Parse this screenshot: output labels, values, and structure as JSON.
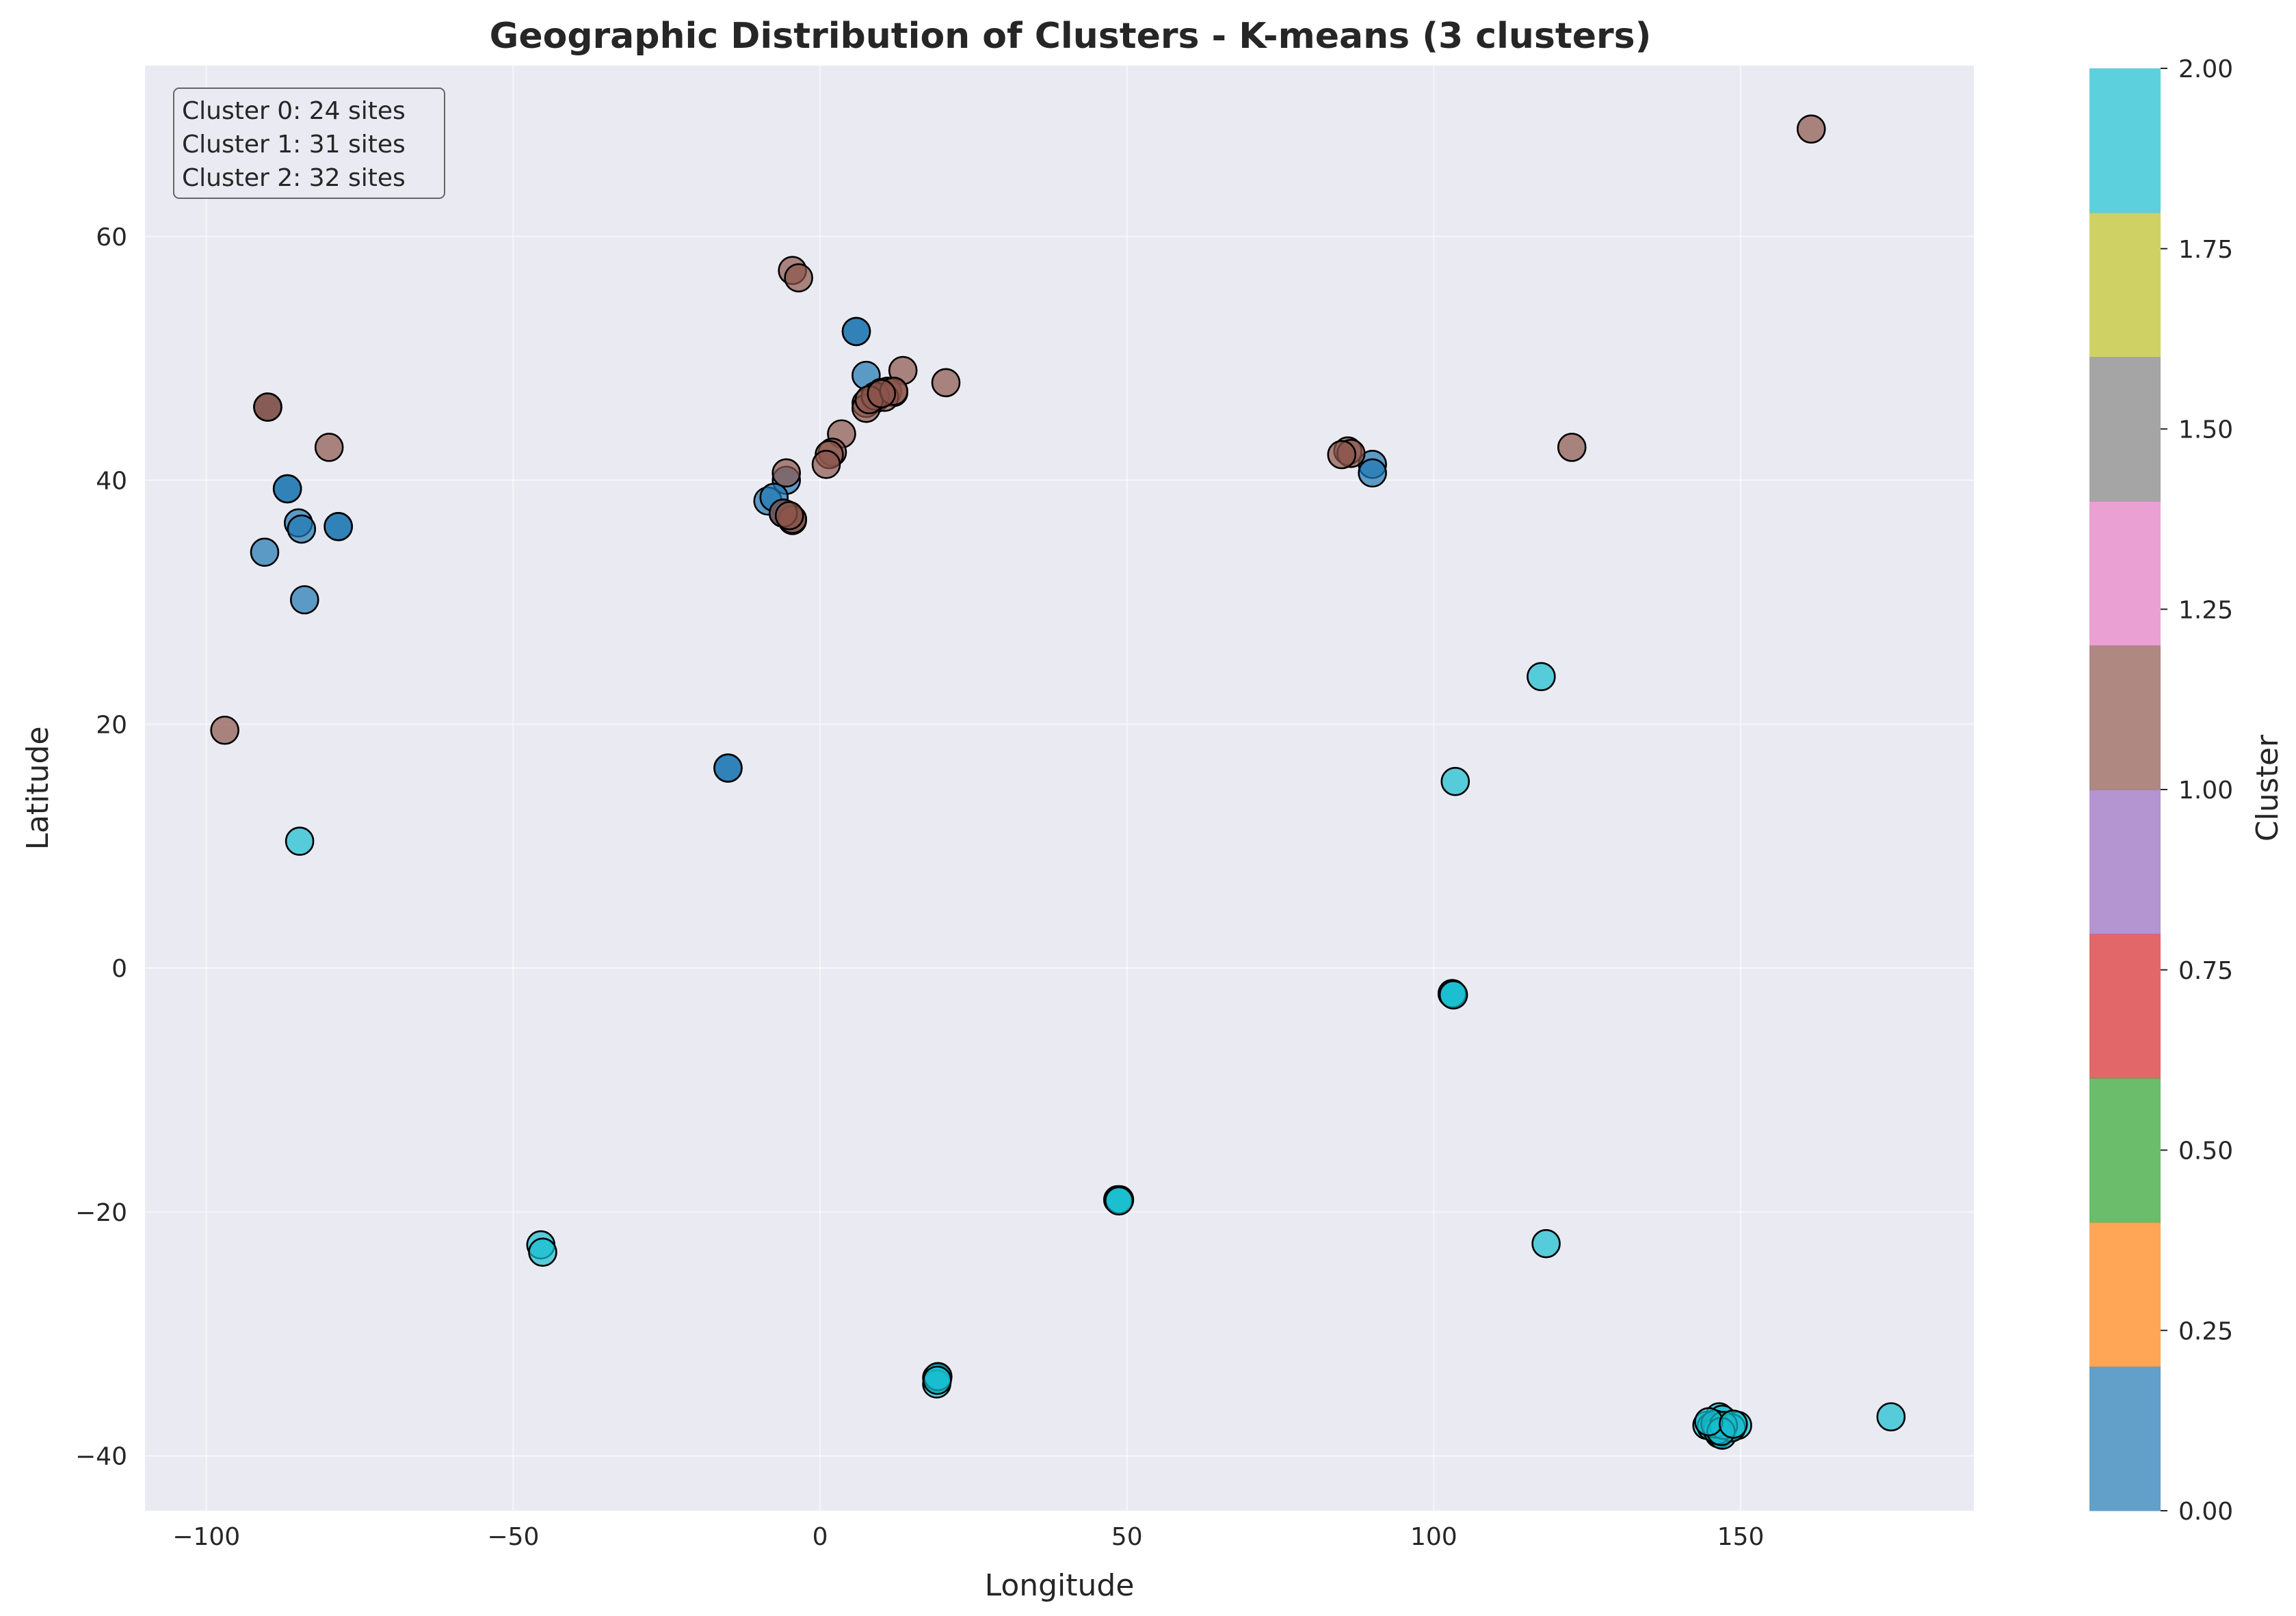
{
  "chart_data": {
    "type": "scatter",
    "title": "Geographic Distribution of Clusters - K-means (3 clusters)",
    "xlabel": "Longitude",
    "ylabel": "Latitude",
    "xlim": [
      -110,
      188
    ],
    "ylim": [
      -44.5,
      74
    ],
    "xticks": [
      -100,
      -50,
      0,
      50,
      100,
      150
    ],
    "yticks": [
      -40,
      -20,
      0,
      20,
      40,
      60
    ],
    "grid": true,
    "annotation": [
      "Cluster 0: 24 sites",
      "Cluster 1: 31 sites",
      "Cluster 2: 32 sites"
    ],
    "annotation_placement": "top-left",
    "colorbar": {
      "label": "Cluster",
      "range": [
        0,
        2
      ],
      "ticks": [
        "0.00",
        "0.25",
        "0.50",
        "0.75",
        "1.00",
        "1.25",
        "1.50",
        "1.75",
        "2.00"
      ],
      "colors": [
        "#1f77b4",
        "#ff7f0e",
        "#2ca02c",
        "#d62728",
        "#9467bd",
        "#8c564b",
        "#e377c2",
        "#7f7f7f",
        "#bcbd22",
        "#17becf"
      ]
    },
    "cluster_colors": [
      "#1f77b4",
      "#8c564b",
      "#17becf"
    ],
    "series": [
      {
        "cluster": 0,
        "points": [
          {
            "x": -86.8,
            "y": 39.3
          },
          {
            "x": -86.8,
            "y": 39.3
          },
          {
            "x": -85,
            "y": 36.5
          },
          {
            "x": -84.5,
            "y": 36
          },
          {
            "x": -78.5,
            "y": 36.2
          },
          {
            "x": -78.5,
            "y": 36.2
          },
          {
            "x": -90.5,
            "y": 34.1
          },
          {
            "x": -84,
            "y": 30.2
          },
          {
            "x": -15,
            "y": 16.4
          },
          {
            "x": -15,
            "y": 16.4
          },
          {
            "x": 5.9,
            "y": 52.2
          },
          {
            "x": 5.9,
            "y": 52.2
          },
          {
            "x": 7.5,
            "y": 48.6
          },
          {
            "x": -5.5,
            "y": 40
          },
          {
            "x": -8.5,
            "y": 38.3
          },
          {
            "x": -7.5,
            "y": 38.6
          },
          {
            "x": -5.5,
            "y": 37.2
          },
          {
            "x": 90,
            "y": 41.3
          },
          {
            "x": 90,
            "y": 40.6
          },
          {
            "x": -4.5,
            "y": 36.8
          },
          {
            "x": -6,
            "y": 37.3
          },
          {
            "x": 9,
            "y": 46.7
          },
          {
            "x": 10,
            "y": 47.2
          },
          {
            "x": -90,
            "y": 46
          }
        ]
      },
      {
        "cluster": 1,
        "points": [
          {
            "x": 161.5,
            "y": 68.8
          },
          {
            "x": -4.5,
            "y": 57.2
          },
          {
            "x": -3.5,
            "y": 56.6
          },
          {
            "x": 13.5,
            "y": 49
          },
          {
            "x": 20.5,
            "y": 48
          },
          {
            "x": 7.5,
            "y": 46.3
          },
          {
            "x": 7.5,
            "y": 45.9
          },
          {
            "x": 11,
            "y": 47.3
          },
          {
            "x": 12,
            "y": 47.2
          },
          {
            "x": 10.5,
            "y": 46.8
          },
          {
            "x": 3.5,
            "y": 43.8
          },
          {
            "x": 2,
            "y": 42.3
          },
          {
            "x": 1.5,
            "y": 42.1
          },
          {
            "x": 1,
            "y": 41.3
          },
          {
            "x": -5.5,
            "y": 40.6
          },
          {
            "x": -4.5,
            "y": 36.7
          },
          {
            "x": -4.5,
            "y": 36.8
          },
          {
            "x": -6,
            "y": 37.3
          },
          {
            "x": -80,
            "y": 42.7
          },
          {
            "x": -90,
            "y": 46
          },
          {
            "x": -90,
            "y": 46
          },
          {
            "x": -97,
            "y": 19.5
          },
          {
            "x": 86,
            "y": 42.4
          },
          {
            "x": 86.5,
            "y": 42.2
          },
          {
            "x": 85,
            "y": 42.1
          },
          {
            "x": 122.5,
            "y": 42.7
          },
          {
            "x": 9,
            "y": 46.9
          },
          {
            "x": 8,
            "y": 46.6
          },
          {
            "x": 12,
            "y": 47.3
          },
          {
            "x": -5,
            "y": 37.1
          },
          {
            "x": 10,
            "y": 47.1
          }
        ]
      },
      {
        "cluster": 2,
        "points": [
          {
            "x": 117.5,
            "y": 23.9
          },
          {
            "x": 103.5,
            "y": 15.3
          },
          {
            "x": -84.8,
            "y": 10.4
          },
          {
            "x": 103,
            "y": -2.1
          },
          {
            "x": 103,
            "y": -2.1
          },
          {
            "x": 48.5,
            "y": -19
          },
          {
            "x": 48.8,
            "y": -19
          },
          {
            "x": -45.5,
            "y": -22.7
          },
          {
            "x": -45.2,
            "y": -23.3
          },
          {
            "x": 118.3,
            "y": -22.6
          },
          {
            "x": 19,
            "y": -33.6
          },
          {
            "x": 19,
            "y": -34.1
          },
          {
            "x": 19.2,
            "y": -33.5
          },
          {
            "x": 146.5,
            "y": -36.8
          },
          {
            "x": 147,
            "y": -37
          },
          {
            "x": 144.5,
            "y": -37.5
          },
          {
            "x": 145.2,
            "y": -37.6
          },
          {
            "x": 146,
            "y": -37.7
          },
          {
            "x": 146.5,
            "y": -38.2
          },
          {
            "x": 147,
            "y": -38.3
          },
          {
            "x": 149.5,
            "y": -37.5
          },
          {
            "x": 148.5,
            "y": -37.7
          },
          {
            "x": 174.5,
            "y": -36.8
          },
          {
            "x": 146.2,
            "y": -37.9
          },
          {
            "x": 145.8,
            "y": -37.4
          },
          {
            "x": 147.2,
            "y": -37.5
          },
          {
            "x": 146.8,
            "y": -38
          },
          {
            "x": 144.8,
            "y": -37.2
          },
          {
            "x": 148.8,
            "y": -37.4
          },
          {
            "x": 103.2,
            "y": -2.2
          },
          {
            "x": 48.7,
            "y": -19.1
          },
          {
            "x": 19.1,
            "y": -33.8
          }
        ]
      }
    ]
  }
}
